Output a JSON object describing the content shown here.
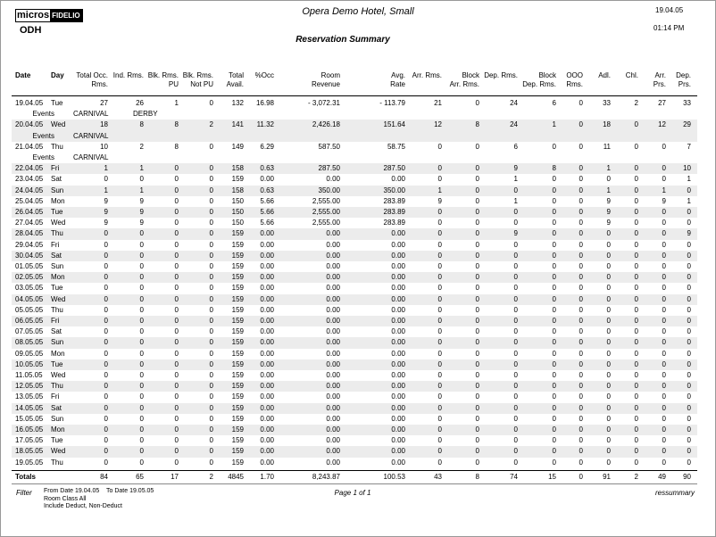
{
  "header": {
    "logo": [
      "micros",
      "FIDELIO"
    ],
    "property": "ODH",
    "hotel": "Opera Demo Hotel, Small",
    "title": "Reservation Summary",
    "date": "19.04.05",
    "time": "01:14 PM"
  },
  "table": {
    "columns": [
      [
        "Date"
      ],
      [
        "Day"
      ],
      [
        "Total Occ.",
        "Rms."
      ],
      [
        "Ind. Rms."
      ],
      [
        "Blk. Rms.",
        "PU"
      ],
      [
        "Blk. Rms.",
        "Not PU"
      ],
      [
        "Total",
        "Avail."
      ],
      [
        "%Occ"
      ],
      [
        "Room",
        "Revenue"
      ],
      [
        "Avg.",
        "Rate"
      ],
      [
        "Arr. Rms."
      ],
      [
        "Block",
        "Arr. Rms."
      ],
      [
        "Dep. Rms."
      ],
      [
        "Block",
        "Dep. Rms."
      ],
      [
        "OOO",
        "Rms."
      ],
      [
        "Adl."
      ],
      [
        "Chl."
      ],
      [
        "Arr.",
        "Prs."
      ],
      [
        "Dep.",
        "Prs."
      ]
    ],
    "rows": [
      [
        "19.04.05",
        "Tue",
        "27",
        "26",
        "1",
        "0",
        "132",
        "16.98",
        "- 3,072.31",
        "- 113.79",
        "21",
        "0",
        "24",
        "6",
        "0",
        "33",
        "2",
        "27",
        "33"
      ],
      {
        "label": "Events",
        "events": [
          "CARNIVAL",
          "DERBY"
        ]
      },
      [
        "20.04.05",
        "Wed",
        "18",
        "8",
        "8",
        "2",
        "141",
        "11.32",
        "2,426.18",
        "151.64",
        "12",
        "8",
        "24",
        "1",
        "0",
        "18",
        "0",
        "12",
        "29"
      ],
      {
        "label": "Events",
        "events": [
          "CARNIVAL"
        ]
      },
      [
        "21.04.05",
        "Thu",
        "10",
        "2",
        "8",
        "0",
        "149",
        "6.29",
        "587.50",
        "58.75",
        "0",
        "0",
        "6",
        "0",
        "0",
        "11",
        "0",
        "0",
        "7"
      ],
      {
        "label": "Events",
        "events": [
          "CARNIVAL"
        ]
      },
      [
        "22.04.05",
        "Fri",
        "1",
        "1",
        "0",
        "0",
        "158",
        "0.63",
        "287.50",
        "287.50",
        "0",
        "0",
        "9",
        "8",
        "0",
        "1",
        "0",
        "0",
        "10"
      ],
      [
        "23.04.05",
        "Sat",
        "0",
        "0",
        "0",
        "0",
        "159",
        "0.00",
        "0.00",
        "0.00",
        "0",
        "0",
        "1",
        "0",
        "0",
        "0",
        "0",
        "0",
        "1"
      ],
      [
        "24.04.05",
        "Sun",
        "1",
        "1",
        "0",
        "0",
        "158",
        "0.63",
        "350.00",
        "350.00",
        "1",
        "0",
        "0",
        "0",
        "0",
        "1",
        "0",
        "1",
        "0"
      ],
      [
        "25.04.05",
        "Mon",
        "9",
        "9",
        "0",
        "0",
        "150",
        "5.66",
        "2,555.00",
        "283.89",
        "9",
        "0",
        "1",
        "0",
        "0",
        "9",
        "0",
        "9",
        "1"
      ],
      [
        "26.04.05",
        "Tue",
        "9",
        "9",
        "0",
        "0",
        "150",
        "5.66",
        "2,555.00",
        "283.89",
        "0",
        "0",
        "0",
        "0",
        "0",
        "9",
        "0",
        "0",
        "0"
      ],
      [
        "27.04.05",
        "Wed",
        "9",
        "9",
        "0",
        "0",
        "150",
        "5.66",
        "2,555.00",
        "283.89",
        "0",
        "0",
        "0",
        "0",
        "0",
        "9",
        "0",
        "0",
        "0"
      ],
      [
        "28.04.05",
        "Thu",
        "0",
        "0",
        "0",
        "0",
        "159",
        "0.00",
        "0.00",
        "0.00",
        "0",
        "0",
        "9",
        "0",
        "0",
        "0",
        "0",
        "0",
        "9"
      ],
      [
        "29.04.05",
        "Fri",
        "0",
        "0",
        "0",
        "0",
        "159",
        "0.00",
        "0.00",
        "0.00",
        "0",
        "0",
        "0",
        "0",
        "0",
        "0",
        "0",
        "0",
        "0"
      ],
      [
        "30.04.05",
        "Sat",
        "0",
        "0",
        "0",
        "0",
        "159",
        "0.00",
        "0.00",
        "0.00",
        "0",
        "0",
        "0",
        "0",
        "0",
        "0",
        "0",
        "0",
        "0"
      ],
      [
        "01.05.05",
        "Sun",
        "0",
        "0",
        "0",
        "0",
        "159",
        "0.00",
        "0.00",
        "0.00",
        "0",
        "0",
        "0",
        "0",
        "0",
        "0",
        "0",
        "0",
        "0"
      ],
      [
        "02.05.05",
        "Mon",
        "0",
        "0",
        "0",
        "0",
        "159",
        "0.00",
        "0.00",
        "0.00",
        "0",
        "0",
        "0",
        "0",
        "0",
        "0",
        "0",
        "0",
        "0"
      ],
      [
        "03.05.05",
        "Tue",
        "0",
        "0",
        "0",
        "0",
        "159",
        "0.00",
        "0.00",
        "0.00",
        "0",
        "0",
        "0",
        "0",
        "0",
        "0",
        "0",
        "0",
        "0"
      ],
      [
        "04.05.05",
        "Wed",
        "0",
        "0",
        "0",
        "0",
        "159",
        "0.00",
        "0.00",
        "0.00",
        "0",
        "0",
        "0",
        "0",
        "0",
        "0",
        "0",
        "0",
        "0"
      ],
      [
        "05.05.05",
        "Thu",
        "0",
        "0",
        "0",
        "0",
        "159",
        "0.00",
        "0.00",
        "0.00",
        "0",
        "0",
        "0",
        "0",
        "0",
        "0",
        "0",
        "0",
        "0"
      ],
      [
        "06.05.05",
        "Fri",
        "0",
        "0",
        "0",
        "0",
        "159",
        "0.00",
        "0.00",
        "0.00",
        "0",
        "0",
        "0",
        "0",
        "0",
        "0",
        "0",
        "0",
        "0"
      ],
      [
        "07.05.05",
        "Sat",
        "0",
        "0",
        "0",
        "0",
        "159",
        "0.00",
        "0.00",
        "0.00",
        "0",
        "0",
        "0",
        "0",
        "0",
        "0",
        "0",
        "0",
        "0"
      ],
      [
        "08.05.05",
        "Sun",
        "0",
        "0",
        "0",
        "0",
        "159",
        "0.00",
        "0.00",
        "0.00",
        "0",
        "0",
        "0",
        "0",
        "0",
        "0",
        "0",
        "0",
        "0"
      ],
      [
        "09.05.05",
        "Mon",
        "0",
        "0",
        "0",
        "0",
        "159",
        "0.00",
        "0.00",
        "0.00",
        "0",
        "0",
        "0",
        "0",
        "0",
        "0",
        "0",
        "0",
        "0"
      ],
      [
        "10.05.05",
        "Tue",
        "0",
        "0",
        "0",
        "0",
        "159",
        "0.00",
        "0.00",
        "0.00",
        "0",
        "0",
        "0",
        "0",
        "0",
        "0",
        "0",
        "0",
        "0"
      ],
      [
        "11.05.05",
        "Wed",
        "0",
        "0",
        "0",
        "0",
        "159",
        "0.00",
        "0.00",
        "0.00",
        "0",
        "0",
        "0",
        "0",
        "0",
        "0",
        "0",
        "0",
        "0"
      ],
      [
        "12.05.05",
        "Thu",
        "0",
        "0",
        "0",
        "0",
        "159",
        "0.00",
        "0.00",
        "0.00",
        "0",
        "0",
        "0",
        "0",
        "0",
        "0",
        "0",
        "0",
        "0"
      ],
      [
        "13.05.05",
        "Fri",
        "0",
        "0",
        "0",
        "0",
        "159",
        "0.00",
        "0.00",
        "0.00",
        "0",
        "0",
        "0",
        "0",
        "0",
        "0",
        "0",
        "0",
        "0"
      ],
      [
        "14.05.05",
        "Sat",
        "0",
        "0",
        "0",
        "0",
        "159",
        "0.00",
        "0.00",
        "0.00",
        "0",
        "0",
        "0",
        "0",
        "0",
        "0",
        "0",
        "0",
        "0"
      ],
      [
        "15.05.05",
        "Sun",
        "0",
        "0",
        "0",
        "0",
        "159",
        "0.00",
        "0.00",
        "0.00",
        "0",
        "0",
        "0",
        "0",
        "0",
        "0",
        "0",
        "0",
        "0"
      ],
      [
        "16.05.05",
        "Mon",
        "0",
        "0",
        "0",
        "0",
        "159",
        "0.00",
        "0.00",
        "0.00",
        "0",
        "0",
        "0",
        "0",
        "0",
        "0",
        "0",
        "0",
        "0"
      ],
      [
        "17.05.05",
        "Tue",
        "0",
        "0",
        "0",
        "0",
        "159",
        "0.00",
        "0.00",
        "0.00",
        "0",
        "0",
        "0",
        "0",
        "0",
        "0",
        "0",
        "0",
        "0"
      ],
      [
        "18.05.05",
        "Wed",
        "0",
        "0",
        "0",
        "0",
        "159",
        "0.00",
        "0.00",
        "0.00",
        "0",
        "0",
        "0",
        "0",
        "0",
        "0",
        "0",
        "0",
        "0"
      ],
      [
        "19.05.05",
        "Thu",
        "0",
        "0",
        "0",
        "0",
        "159",
        "0.00",
        "0.00",
        "0.00",
        "0",
        "0",
        "0",
        "0",
        "0",
        "0",
        "0",
        "0",
        "0"
      ]
    ],
    "totals": [
      "Totals",
      "",
      "84",
      "65",
      "17",
      "2",
      "4845",
      "1.70",
      "8,243.87",
      "100.53",
      "43",
      "8",
      "74",
      "15",
      "0",
      "91",
      "2",
      "49",
      "90"
    ]
  },
  "footer": {
    "filter_label": "Filter",
    "from": "From Date 19.04.05",
    "to": "To Date 19.05.05",
    "room_class": "Room Class All",
    "include": "Include Deduct, Non-Deduct",
    "page": "Page 1 of 1",
    "report": "ressummary"
  }
}
